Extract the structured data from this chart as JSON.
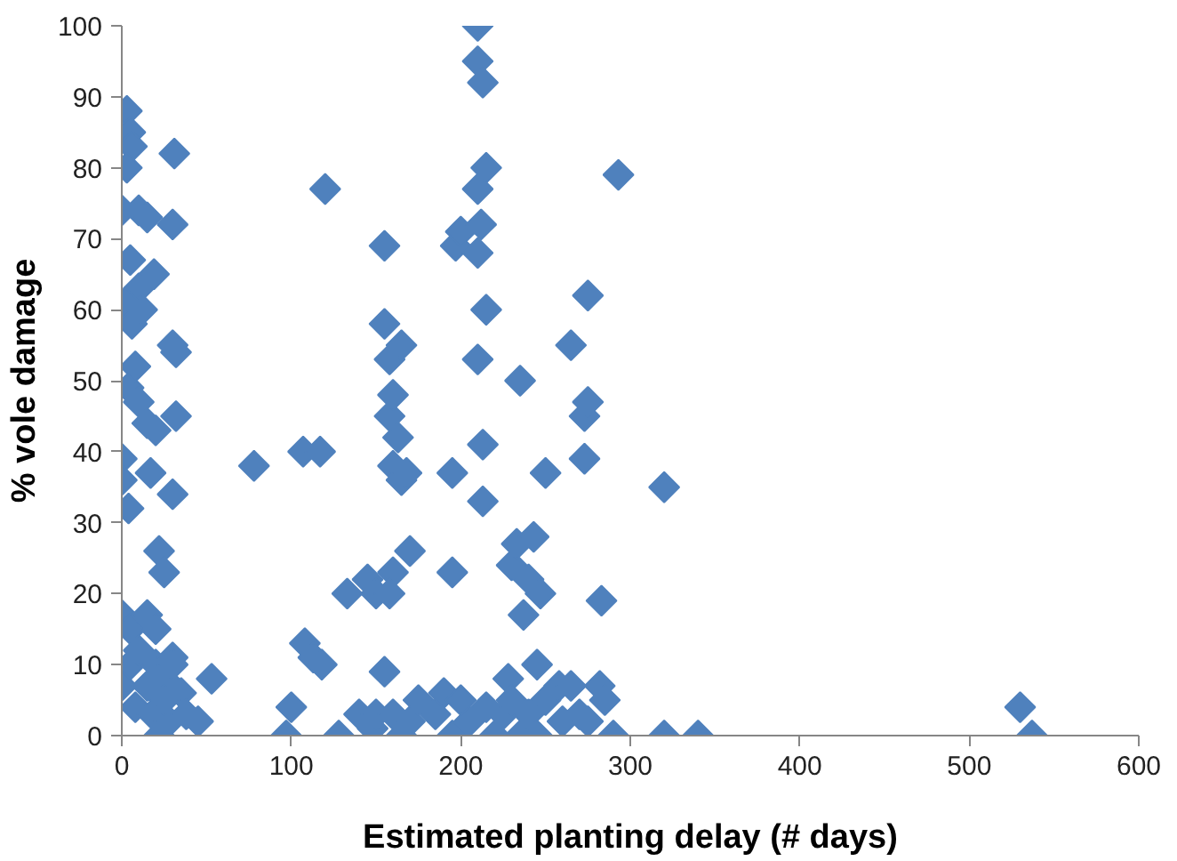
{
  "chart_data": {
    "type": "scatter",
    "xlabel": "Estimated planting delay (# days)",
    "ylabel": "% vole damage",
    "xlim": [
      0,
      600
    ],
    "ylim": [
      0,
      100
    ],
    "xticks": [
      0,
      100,
      200,
      300,
      400,
      500,
      600
    ],
    "yticks": [
      0,
      10,
      20,
      30,
      40,
      50,
      60,
      70,
      80,
      90,
      100
    ],
    "grid": false,
    "marker": "diamond",
    "series": [
      {
        "color": "#4f81bd",
        "x": [
          3,
          5,
          6,
          3,
          0,
          10,
          15,
          31,
          30,
          5,
          10,
          2,
          6,
          19,
          12,
          30,
          32,
          4,
          8,
          10,
          15,
          20,
          32,
          0,
          0,
          4,
          17,
          30,
          22,
          25,
          0,
          5,
          15,
          20,
          5,
          10,
          20,
          30,
          0,
          15,
          25,
          35,
          53,
          8,
          18,
          22,
          28,
          38,
          45,
          25,
          30,
          78,
          107,
          117,
          120,
          100,
          97,
          108,
          113,
          118,
          128,
          133,
          140,
          145,
          150,
          148,
          150,
          155,
          155,
          158,
          158,
          160,
          160,
          163,
          165,
          165,
          168,
          160,
          170,
          158,
          155,
          160,
          165,
          170,
          175,
          185,
          190,
          195,
          195,
          197,
          200,
          195,
          205,
          200,
          210,
          210,
          213,
          210,
          215,
          212,
          210,
          210,
          213,
          213,
          215,
          220,
          225,
          228,
          230,
          233,
          235,
          237,
          240,
          243,
          247,
          250,
          245,
          250,
          258,
          265,
          270,
          273,
          273,
          275,
          275,
          283,
          282,
          285,
          290,
          293,
          320,
          320,
          340,
          530,
          537,
          235,
          240,
          260,
          215,
          230,
          265,
          245,
          275
        ],
        "values": [
          88,
          85,
          83,
          80,
          74,
          74,
          73,
          82,
          72,
          67,
          63,
          61,
          58,
          65,
          60,
          55,
          54,
          49,
          52,
          47,
          44,
          43,
          45,
          39,
          36,
          32,
          37,
          34,
          26,
          23,
          17,
          15,
          17,
          15,
          10,
          12,
          10,
          11,
          7,
          7,
          8,
          6,
          8,
          4,
          3,
          0,
          2,
          3,
          2,
          5,
          10,
          38,
          40,
          40,
          77,
          4,
          0,
          13,
          11,
          10,
          0,
          20,
          3,
          22,
          20,
          1,
          3,
          69,
          58,
          53,
          45,
          48,
          38,
          42,
          36,
          55,
          37,
          23,
          26,
          20,
          9,
          3,
          0,
          2,
          5,
          3,
          6,
          0,
          37,
          69,
          71,
          23,
          2,
          5,
          100,
          95,
          92,
          77,
          80,
          72,
          68,
          53,
          41,
          33,
          60,
          0,
          3,
          8,
          24,
          27,
          50,
          17,
          22,
          28,
          20,
          37,
          10,
          5,
          7,
          55,
          3,
          39,
          45,
          47,
          62,
          19,
          7,
          5,
          0,
          79,
          35,
          0,
          0,
          4,
          0,
          0,
          3,
          2,
          4,
          5,
          7,
          0,
          2
        ]
      }
    ]
  }
}
